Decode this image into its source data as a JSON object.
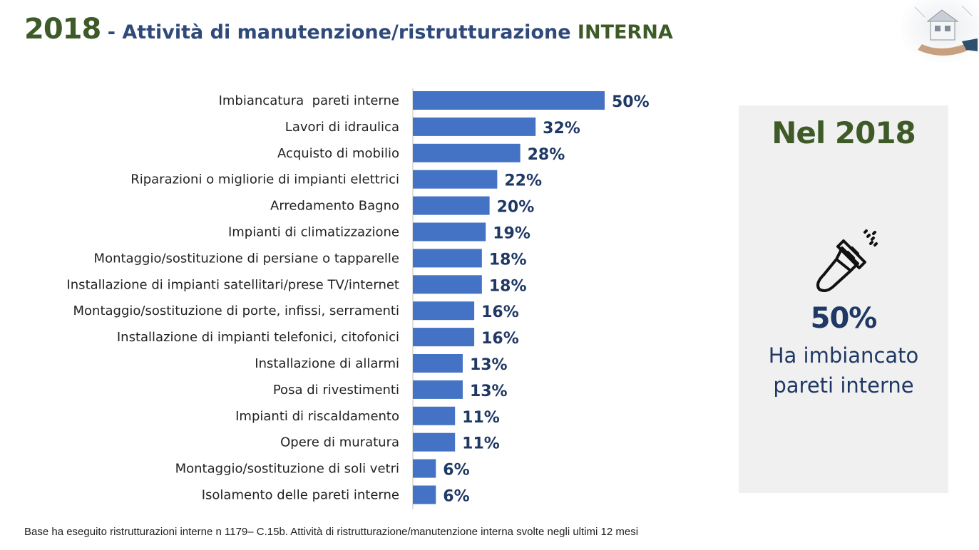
{
  "header": {
    "year": "2018",
    "subtitle": " - Attività di manutenzione/ristrutturazione ",
    "subtitle_emphasis": "INTERNA"
  },
  "chart_data": {
    "type": "bar",
    "orientation": "horizontal",
    "categories": [
      "Imbiancatura  pareti interne",
      "Lavori di idraulica",
      "Acquisto di mobilio",
      "Riparazioni o migliorie di impianti elettrici",
      "Arredamento Bagno",
      "Impianti di climatizzazione",
      "Montaggio/sostituzione di persiane o tapparelle",
      "Installazione di impianti satellitari/prese TV/internet",
      "Montaggio/sostituzione di porte, infissi, serramenti",
      "Installazione di impianti telefonici, citofonici",
      "Installazione di allarmi",
      "Posa di rivestimenti",
      "Impianti di riscaldamento",
      "Opere di muratura",
      "Montaggio/sostituzione di soli vetri",
      "Isolamento delle pareti interne"
    ],
    "values": [
      50,
      32,
      28,
      22,
      20,
      19,
      18,
      18,
      16,
      16,
      13,
      13,
      11,
      11,
      6,
      6
    ],
    "value_labels": [
      "50%",
      "32%",
      "28%",
      "22%",
      "20%",
      "19%",
      "18%",
      "18%",
      "16%",
      "16%",
      "13%",
      "13%",
      "11%",
      "11%",
      "6%",
      "6%"
    ],
    "xlim": [
      0,
      60
    ],
    "grid": false,
    "bar_color": "#4472c4"
  },
  "side_panel": {
    "heading": "Nel 2018",
    "icon": "paint-brush-icon",
    "value": "50%",
    "caption_line1": "Ha imbiancato",
    "caption_line2": "pareti interne"
  },
  "footnote": "Base ha eseguito ristrutturazioni interne n 1179– C.15b. Attività di ristrutturazione/manutenzione interna svolte negli ultimi 12 mesi",
  "colors": {
    "green": "#3d5a27",
    "navy": "#1f3864",
    "blue": "#2f4a7a",
    "panel_bg": "#f0f0f0"
  }
}
